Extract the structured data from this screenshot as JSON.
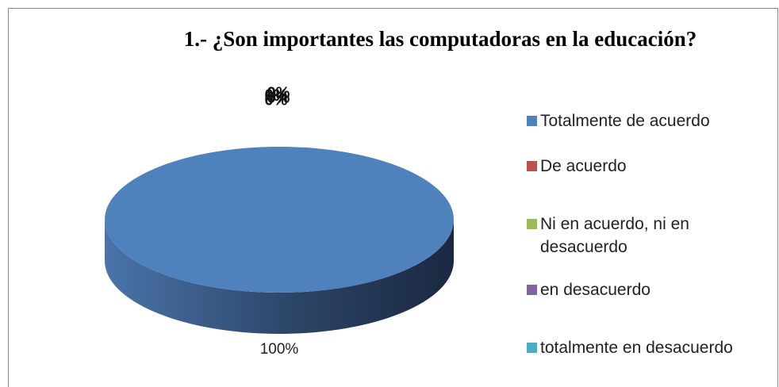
{
  "chart_data": {
    "type": "pie3d",
    "title": "1.- ¿Son importantes las computadoras en la educación?",
    "categories": [
      "Totalmente de acuerdo",
      "De acuerdo",
      "Ni en acuerdo, ni en desacuerdo",
      "en desacuerdo",
      "totalmente en desacuerdo"
    ],
    "values": [
      100,
      0,
      0,
      0,
      0
    ],
    "value_labels": [
      "100%",
      "0%",
      "0%",
      "0%",
      "0%"
    ],
    "colors": [
      "#4f81bd",
      "#c0504d",
      "#9bbb59",
      "#8064a2",
      "#4bacc6"
    ],
    "legend": "right"
  }
}
